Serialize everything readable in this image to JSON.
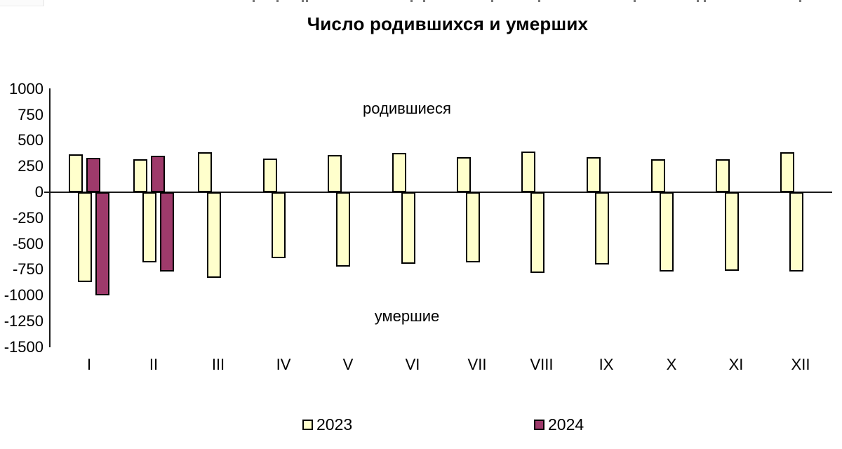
{
  "chart_data": {
    "type": "bar",
    "title": "Число родившихся и умерших",
    "categories": [
      "I",
      "II",
      "III",
      "IV",
      "V",
      "VI",
      "VII",
      "VIII",
      "IX",
      "X",
      "XI",
      "XII"
    ],
    "series": [
      {
        "name": "2023",
        "measure": "родившиеся",
        "color": "#FFFFCC",
        "values": [
          370,
          320,
          390,
          325,
          360,
          380,
          340,
          395,
          340,
          320,
          320,
          385
        ]
      },
      {
        "name": "2023",
        "measure": "умершие",
        "color": "#FFFFCC",
        "values": [
          -870,
          -680,
          -830,
          -640,
          -720,
          -690,
          -680,
          -780,
          -700,
          -770,
          -760,
          -770
        ]
      },
      {
        "name": "2024",
        "measure": "родившиеся",
        "color": "#9E3A6B",
        "values": [
          330,
          350,
          null,
          null,
          null,
          null,
          null,
          null,
          null,
          null,
          null,
          null
        ]
      },
      {
        "name": "2024",
        "measure": "умершие",
        "color": "#9E3A6B",
        "values": [
          -1000,
          -770,
          null,
          null,
          null,
          null,
          null,
          null,
          null,
          null,
          null,
          null
        ]
      }
    ],
    "annotations": [
      {
        "id": "births",
        "text": "родившиеся"
      },
      {
        "id": "deaths",
        "text": "умершие"
      }
    ],
    "y_axis": {
      "min": -1500,
      "max": 1000,
      "tick_step": 250,
      "ticks": [
        1000,
        750,
        500,
        250,
        0,
        -250,
        -500,
        -750,
        -1000,
        -1250,
        -1500
      ]
    },
    "x_axis": {
      "labels": [
        "I",
        "II",
        "III",
        "IV",
        "V",
        "VI",
        "VII",
        "VIII",
        "IX",
        "X",
        "XI",
        "XII"
      ]
    },
    "legend": {
      "position": "bottom",
      "entries": [
        {
          "label": "2023",
          "color": "#FFFFCC"
        },
        {
          "label": "2024",
          "color": "#9E3A6B"
        }
      ]
    },
    "grid": false,
    "bar_border_color": "#000000"
  }
}
